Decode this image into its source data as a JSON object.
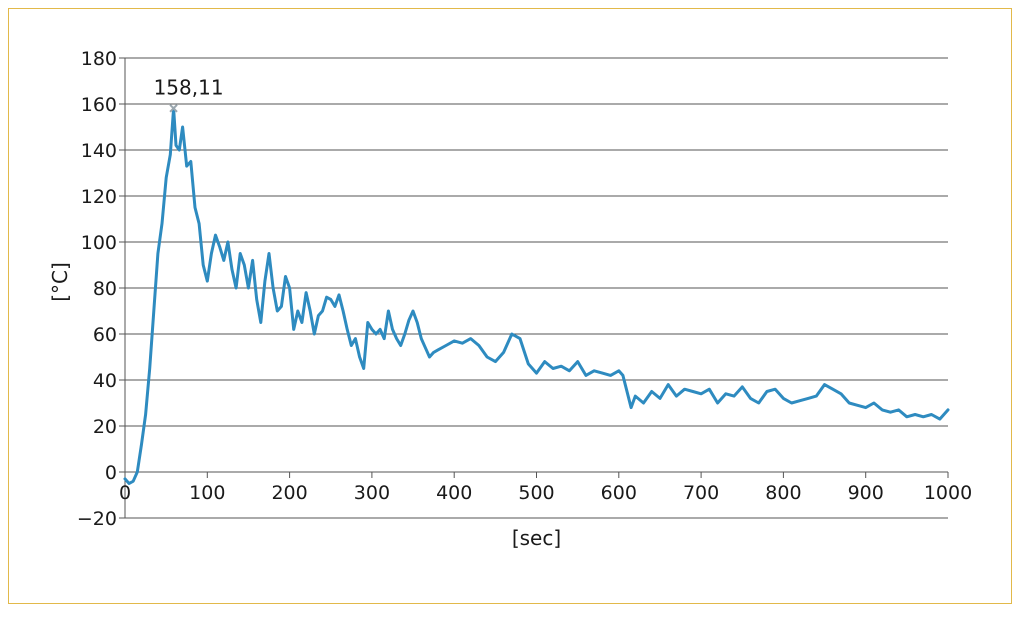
{
  "chart_data": {
    "type": "line",
    "title": "",
    "xlabel": "[sec]",
    "ylabel": "[°C]",
    "xlim": [
      0,
      1000
    ],
    "ylim": [
      -20,
      180
    ],
    "xticks": [
      0,
      100,
      200,
      300,
      400,
      500,
      600,
      700,
      800,
      900,
      1000
    ],
    "yticks": [
      -20,
      0,
      20,
      40,
      60,
      80,
      100,
      120,
      140,
      160,
      180
    ],
    "ytick_labels": [
      "−20",
      "0",
      "20",
      "40",
      "60",
      "80",
      "100",
      "120",
      "140",
      "160",
      "180"
    ],
    "grid": "horizontal",
    "legend": "none",
    "line_color": "#2e8bc0",
    "frame_color": "#e2b94a",
    "annotation": {
      "text": "158,11",
      "x": 59,
      "y": 158.11
    },
    "series": [
      {
        "x": [
          0,
          5,
          10,
          15,
          20,
          25,
          30,
          35,
          40,
          45,
          50,
          55,
          59,
          62,
          66,
          70,
          75,
          80,
          85,
          90,
          95,
          100,
          105,
          110,
          115,
          120,
          125,
          130,
          135,
          140,
          145,
          150,
          155,
          160,
          165,
          170,
          175,
          180,
          185,
          190,
          195,
          200,
          205,
          210,
          215,
          220,
          225,
          230,
          235,
          240,
          245,
          250,
          255,
          260,
          265,
          270,
          275,
          280,
          285,
          290,
          295,
          300,
          305,
          310,
          315,
          320,
          325,
          330,
          335,
          340,
          345,
          350,
          355,
          360,
          365,
          370,
          375,
          380,
          390,
          400,
          410,
          420,
          430,
          440,
          450,
          460,
          470,
          480,
          490,
          500,
          510,
          520,
          530,
          540,
          550,
          560,
          570,
          580,
          590,
          600,
          605,
          610,
          615,
          620,
          630,
          640,
          650,
          660,
          670,
          680,
          690,
          700,
          710,
          720,
          730,
          740,
          750,
          760,
          770,
          780,
          790,
          800,
          810,
          820,
          830,
          840,
          850,
          860,
          870,
          880,
          890,
          900,
          910,
          920,
          930,
          940,
          950,
          960,
          970,
          980,
          990,
          1000
        ],
        "y": [
          -3,
          -5,
          -4,
          0,
          12,
          25,
          45,
          70,
          95,
          108,
          128,
          138,
          158.11,
          142,
          140,
          150,
          133,
          135,
          115,
          108,
          90,
          83,
          95,
          103,
          98,
          92,
          100,
          88,
          80,
          95,
          90,
          80,
          92,
          75,
          65,
          83,
          95,
          80,
          70,
          72,
          85,
          80,
          62,
          70,
          65,
          78,
          70,
          60,
          68,
          70,
          76,
          75,
          72,
          77,
          70,
          62,
          55,
          58,
          50,
          45,
          65,
          62,
          60,
          62,
          58,
          70,
          62,
          58,
          55,
          60,
          66,
          70,
          65,
          58,
          54,
          50,
          52,
          53,
          55,
          57,
          56,
          58,
          55,
          50,
          48,
          52,
          60,
          58,
          47,
          43,
          48,
          45,
          46,
          44,
          48,
          42,
          44,
          43,
          42,
          44,
          42,
          35,
          28,
          33,
          30,
          35,
          32,
          38,
          33,
          36,
          35,
          34,
          36,
          30,
          34,
          33,
          37,
          32,
          30,
          35,
          36,
          32,
          30,
          31,
          32,
          33,
          38,
          36,
          34,
          30,
          29,
          28,
          30,
          27,
          26,
          27,
          24,
          25,
          24,
          25,
          23,
          27
        ]
      }
    ]
  }
}
